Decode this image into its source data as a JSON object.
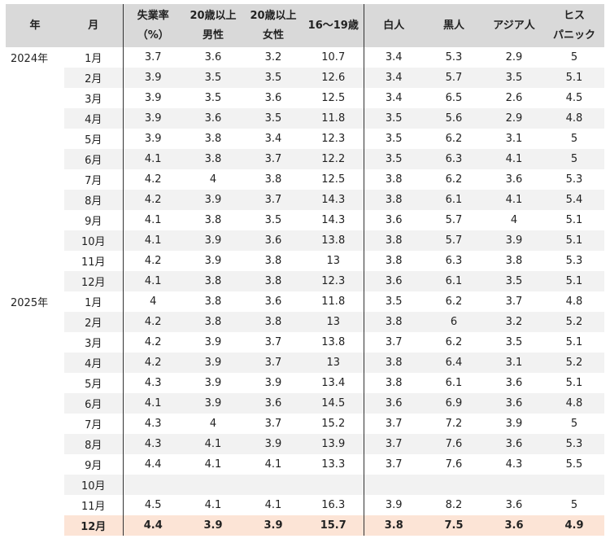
{
  "headers": {
    "year": "年",
    "month": "月",
    "unemp": [
      "失業率",
      "（%）"
    ],
    "men20": [
      "20歳以上",
      "男性"
    ],
    "women20": [
      "20歳以上",
      "女性"
    ],
    "teen": [
      "16～19歳"
    ],
    "white": [
      "白人"
    ],
    "black": [
      "黒人"
    ],
    "asian": [
      "アジア人"
    ],
    "hispanic": [
      "ヒス",
      "パニック"
    ]
  },
  "rows": [
    {
      "year": "2024年",
      "month": "1月",
      "values": [
        "3.7",
        "3.6",
        "3.2",
        "10.7",
        "3.4",
        "5.3",
        "2.9",
        "5"
      ]
    },
    {
      "year": "",
      "month": "2月",
      "values": [
        "3.9",
        "3.5",
        "3.5",
        "12.6",
        "3.4",
        "5.7",
        "3.5",
        "5.1"
      ]
    },
    {
      "year": "",
      "month": "3月",
      "values": [
        "3.9",
        "3.5",
        "3.6",
        "12.5",
        "3.4",
        "6.5",
        "2.6",
        "4.5"
      ]
    },
    {
      "year": "",
      "month": "4月",
      "values": [
        "3.9",
        "3.6",
        "3.5",
        "11.8",
        "3.5",
        "5.6",
        "2.9",
        "4.8"
      ]
    },
    {
      "year": "",
      "month": "5月",
      "values": [
        "3.9",
        "3.8",
        "3.4",
        "12.3",
        "3.5",
        "6.2",
        "3.1",
        "5"
      ]
    },
    {
      "year": "",
      "month": "6月",
      "values": [
        "4.1",
        "3.8",
        "3.7",
        "12.2",
        "3.5",
        "6.3",
        "4.1",
        "5"
      ]
    },
    {
      "year": "",
      "month": "7月",
      "values": [
        "4.2",
        "4",
        "3.8",
        "12.5",
        "3.8",
        "6.2",
        "3.6",
        "5.3"
      ]
    },
    {
      "year": "",
      "month": "8月",
      "values": [
        "4.2",
        "3.9",
        "3.7",
        "14.3",
        "3.8",
        "6.1",
        "4.1",
        "5.4"
      ]
    },
    {
      "year": "",
      "month": "9月",
      "values": [
        "4.1",
        "3.8",
        "3.5",
        "14.3",
        "3.6",
        "5.7",
        "4",
        "5.1"
      ]
    },
    {
      "year": "",
      "month": "10月",
      "values": [
        "4.1",
        "3.9",
        "3.6",
        "13.8",
        "3.8",
        "5.7",
        "3.9",
        "5.1"
      ]
    },
    {
      "year": "",
      "month": "11月",
      "values": [
        "4.2",
        "3.9",
        "3.8",
        "13",
        "3.8",
        "6.3",
        "3.8",
        "5.3"
      ]
    },
    {
      "year": "",
      "month": "12月",
      "values": [
        "4.1",
        "3.8",
        "3.8",
        "12.3",
        "3.6",
        "6.1",
        "3.5",
        "5.1"
      ]
    },
    {
      "year": "2025年",
      "month": "1月",
      "values": [
        "4",
        "3.8",
        "3.6",
        "11.8",
        "3.5",
        "6.2",
        "3.7",
        "4.8"
      ]
    },
    {
      "year": "",
      "month": "2月",
      "values": [
        "4.2",
        "3.8",
        "3.8",
        "13",
        "3.8",
        "6",
        "3.2",
        "5.2"
      ]
    },
    {
      "year": "",
      "month": "3月",
      "values": [
        "4.2",
        "3.9",
        "3.7",
        "13.8",
        "3.7",
        "6.2",
        "3.5",
        "5.1"
      ]
    },
    {
      "year": "",
      "month": "4月",
      "values": [
        "4.2",
        "3.9",
        "3.7",
        "13",
        "3.8",
        "6.4",
        "3.1",
        "5.2"
      ]
    },
    {
      "year": "",
      "month": "5月",
      "values": [
        "4.3",
        "3.9",
        "3.9",
        "13.4",
        "3.8",
        "6.1",
        "3.6",
        "5.1"
      ]
    },
    {
      "year": "",
      "month": "6月",
      "values": [
        "4.1",
        "3.9",
        "3.6",
        "14.5",
        "3.6",
        "6.9",
        "3.6",
        "4.8"
      ]
    },
    {
      "year": "",
      "month": "7月",
      "values": [
        "4.3",
        "4",
        "3.7",
        "15.2",
        "3.7",
        "7.2",
        "3.9",
        "5"
      ]
    },
    {
      "year": "",
      "month": "8月",
      "values": [
        "4.3",
        "4.1",
        "3.9",
        "13.9",
        "3.7",
        "7.6",
        "3.6",
        "5.3"
      ]
    },
    {
      "year": "",
      "month": "9月",
      "values": [
        "4.4",
        "4.1",
        "4.1",
        "13.3",
        "3.7",
        "7.6",
        "4.3",
        "5.5"
      ]
    },
    {
      "year": "",
      "month": "10月",
      "values": [
        "",
        "",
        "",
        "",
        "",
        "",
        "",
        ""
      ]
    },
    {
      "year": "",
      "month": "11月",
      "values": [
        "4.5",
        "4.1",
        "4.1",
        "16.3",
        "3.9",
        "8.2",
        "3.6",
        "5"
      ]
    },
    {
      "year": "",
      "month": "12月",
      "values": [
        "4.4",
        "3.9",
        "3.9",
        "15.7",
        "3.8",
        "7.5",
        "3.6",
        "4.9"
      ],
      "highlight": true
    }
  ]
}
